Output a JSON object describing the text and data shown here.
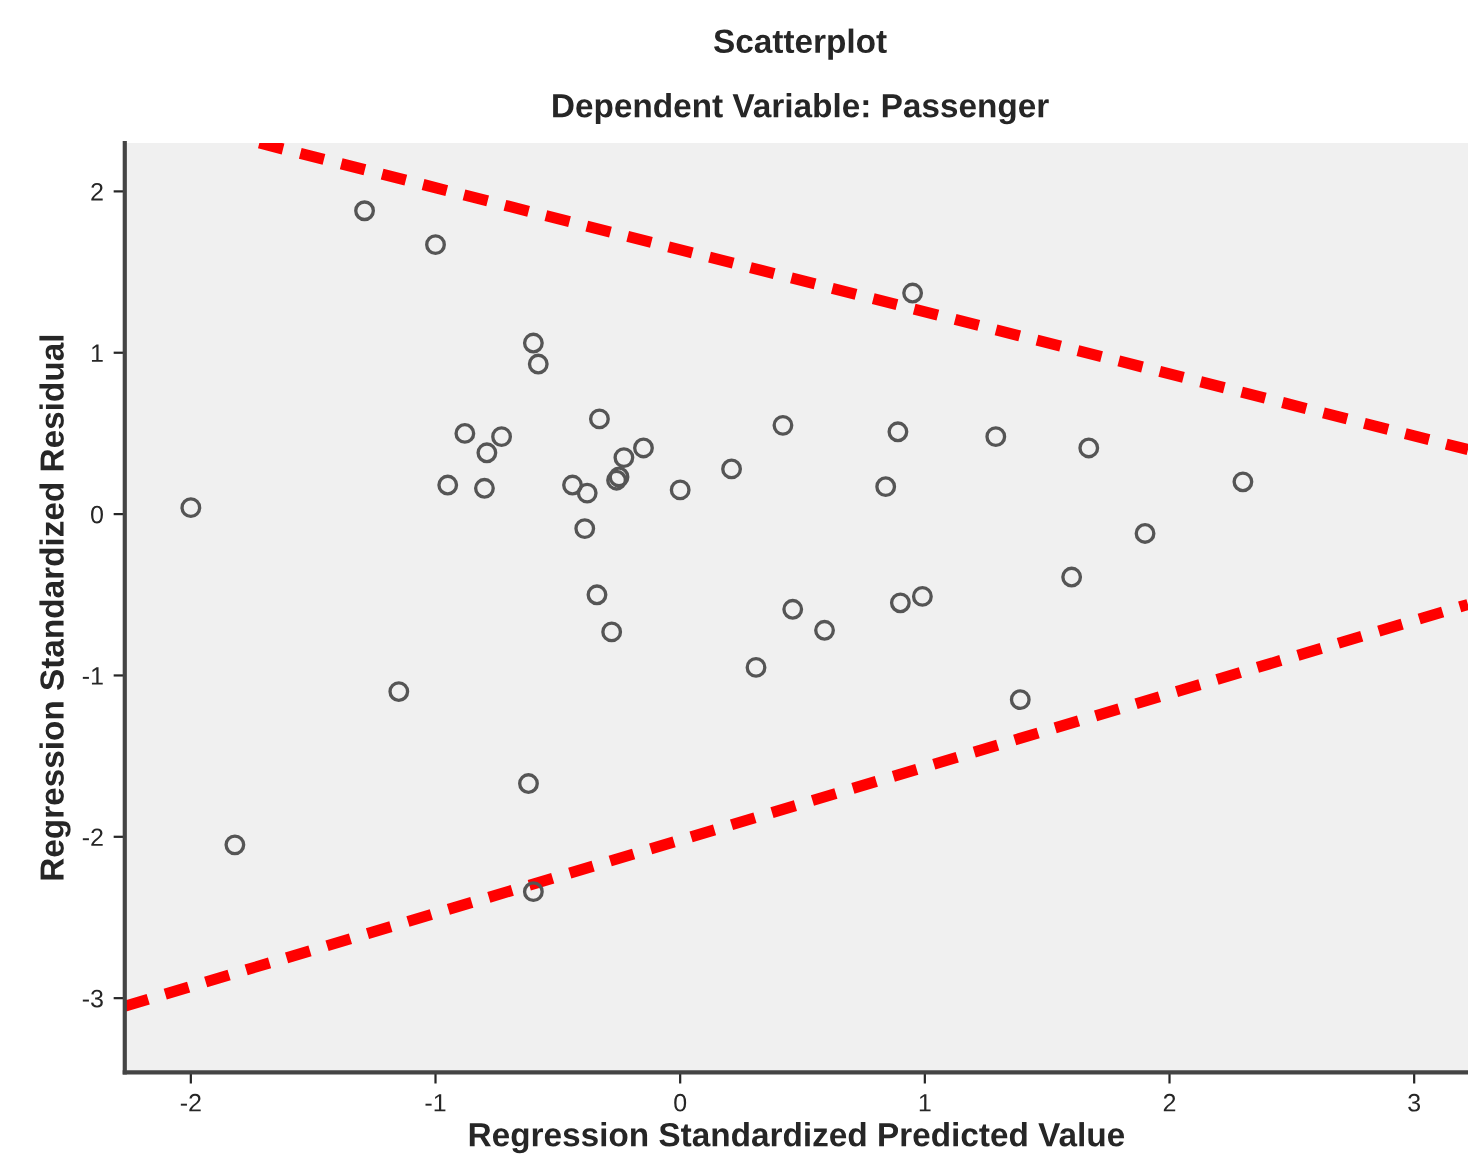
{
  "chart_data": {
    "type": "scatter",
    "title": "Scatterplot",
    "subtitle": "Dependent Variable: Passenger",
    "xlabel": "Regression Standardized Predicted Value",
    "ylabel": "Regression Standardized Residual",
    "xlim": [
      -2.27,
      3.22
    ],
    "ylim": [
      -3.46,
      2.3
    ],
    "xticks": [
      -2,
      -1,
      0,
      1,
      2,
      3
    ],
    "yticks": [
      -3,
      -2,
      -1,
      0,
      1,
      2
    ],
    "grid": false,
    "legend": false,
    "series": [
      {
        "color": "#555555",
        "marker": "circle",
        "x": [
          -2.0,
          -1.82,
          -1.29,
          -1.0,
          -1.15,
          -0.6,
          -0.58,
          -0.62,
          -0.6,
          -0.88,
          -0.73,
          -0.79,
          -0.95,
          -0.8,
          -0.33,
          -0.23,
          -0.15,
          -0.25,
          -0.26,
          -0.44,
          -0.38,
          -0.39,
          0.0,
          0.21,
          0.42,
          0.89,
          0.84,
          0.95,
          -0.34,
          -0.28,
          0.46,
          0.59,
          0.9,
          0.99,
          0.31,
          1.29,
          1.67,
          1.6,
          1.9,
          2.3,
          1.39
        ],
        "values": [
          0.04,
          -2.05,
          1.88,
          1.67,
          -1.1,
          1.06,
          0.93,
          -1.67,
          -2.34,
          0.5,
          0.48,
          0.38,
          0.18,
          0.16,
          0.59,
          0.35,
          0.41,
          0.23,
          0.21,
          0.18,
          0.13,
          -0.09,
          0.15,
          0.28,
          0.55,
          0.51,
          0.17,
          1.37,
          -0.5,
          -0.73,
          -0.59,
          -0.72,
          -0.55,
          -0.51,
          -0.95,
          0.48,
          0.41,
          -0.39,
          -0.12,
          0.2,
          -1.15
        ]
      },
      {
        "type": "line",
        "color": "#ff0000",
        "line_style": "dashed",
        "marker": "none",
        "x": [
          -1.72,
          3.22
        ],
        "values": [
          2.3,
          0.4
        ]
      },
      {
        "type": "line",
        "color": "#ff0000",
        "line_style": "dashed",
        "marker": "none",
        "x": [
          -2.27,
          3.22
        ],
        "values": [
          -3.05,
          -0.56
        ]
      }
    ]
  }
}
